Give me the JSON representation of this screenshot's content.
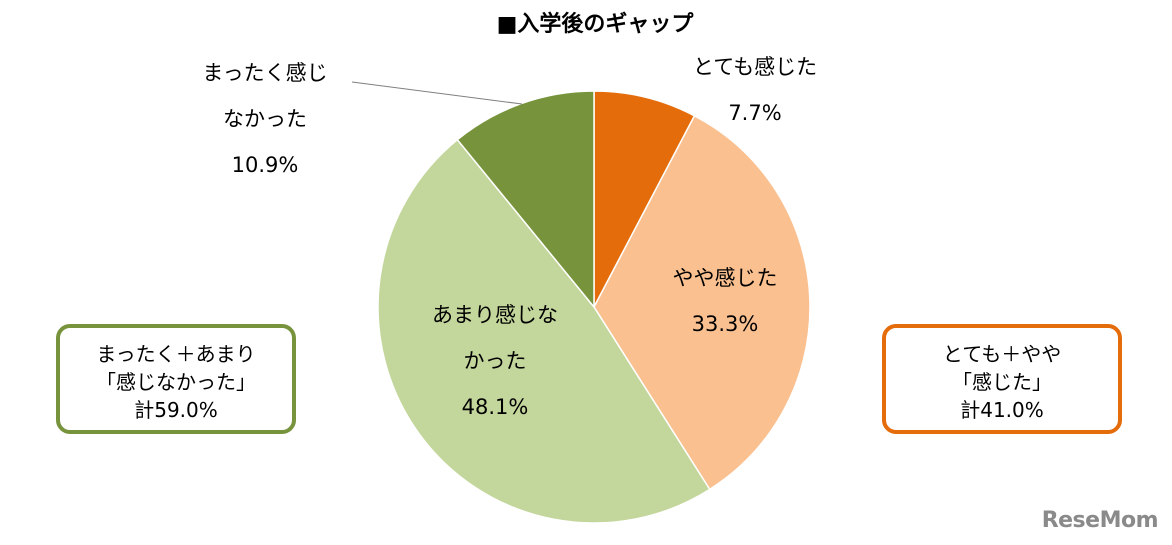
{
  "chart_data": {
    "type": "pie",
    "title": "■入学後のギャップ",
    "start": "top",
    "direction": "clockwise",
    "slices": [
      {
        "label": "とても感じた",
        "label_lines": [
          "とても感じた"
        ],
        "value": 7.7,
        "value_label": "7.7%",
        "color": "#E46C0A"
      },
      {
        "label": "やや感じた",
        "label_lines": [
          "やや感じた"
        ],
        "value": 33.3,
        "value_label": "33.3%",
        "color": "#FAC090"
      },
      {
        "label": "あまり感じなかった",
        "label_lines": [
          "あまり感じな",
          "かった"
        ],
        "value": 48.1,
        "value_label": "48.1%",
        "color": "#C3D69B"
      },
      {
        "label": "まったく感じなかった",
        "label_lines": [
          "まったく感じ",
          "なかった"
        ],
        "value": 10.9,
        "value_label": "10.9%",
        "color": "#77933C"
      }
    ],
    "annotations": [
      {
        "lines": [
          "まったく＋あまり",
          "「感じなかった」",
          "計59.0%"
        ],
        "border_color": "#77933C"
      },
      {
        "lines": [
          "とても＋やや",
          "「感じた」",
          "計41.0%"
        ],
        "border_color": "#E46C0A"
      }
    ]
  },
  "watermark": "ReseMom"
}
